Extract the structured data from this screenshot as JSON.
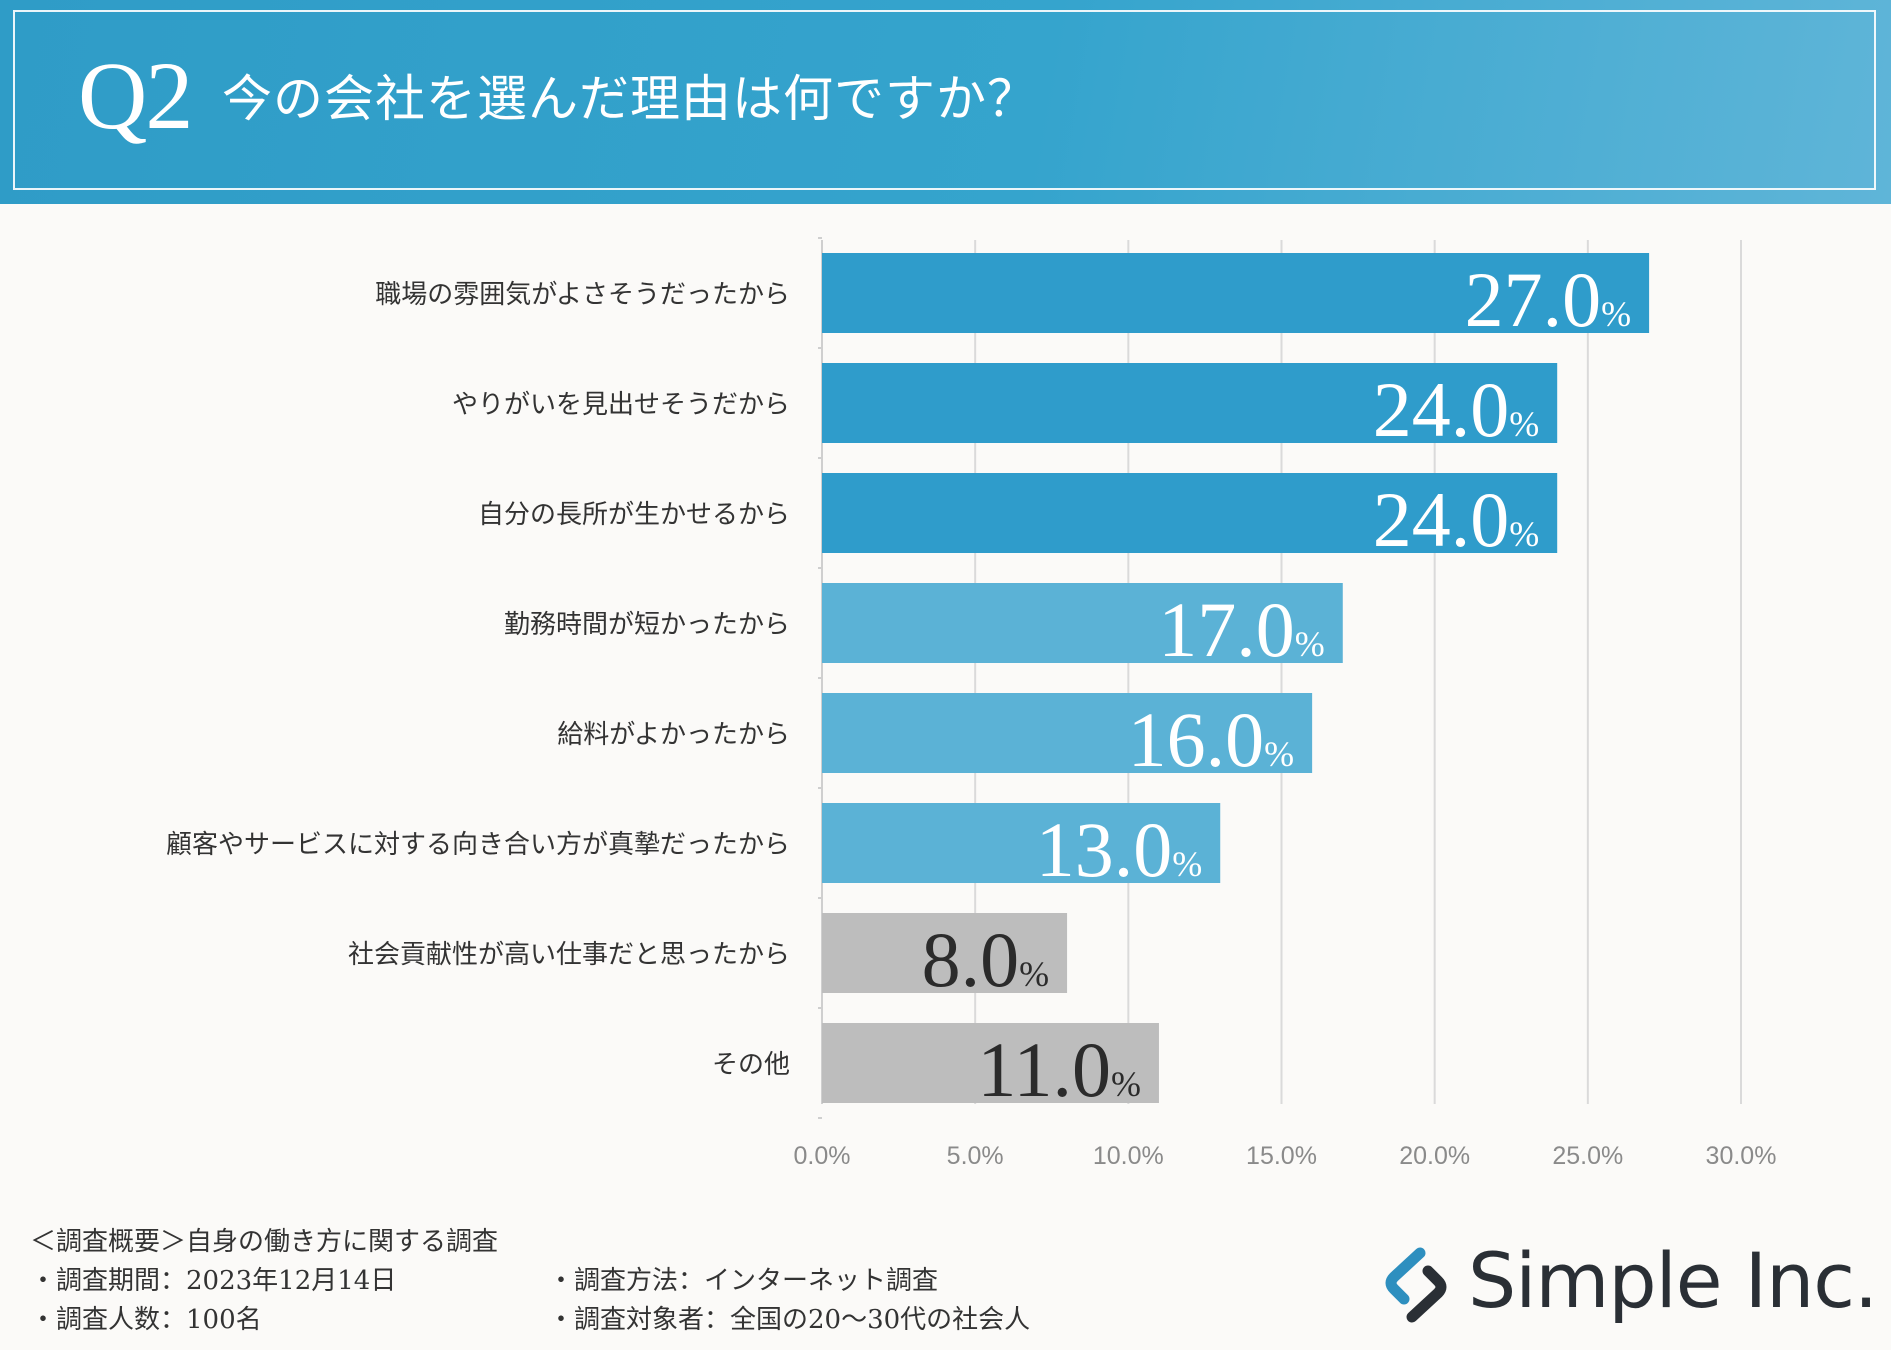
{
  "header": {
    "q_number": "Q2",
    "title": "今の会社を選んだ理由は何ですか？"
  },
  "chart_data": {
    "type": "bar",
    "orientation": "horizontal",
    "categories": [
      "職場の雰囲気がよさそうだったから",
      "やりがいを見出せそうだから",
      "自分の長所が生かせるから",
      "勤務時間が短かったから",
      "給料がよかったから",
      "顧客やサービスに対する向き合い方が真摯だったから",
      "社会貢献性が高い仕事だと思ったから",
      "その他"
    ],
    "values": [
      27.0,
      24.0,
      24.0,
      17.0,
      16.0,
      13.0,
      8.0,
      11.0
    ],
    "data_labels": [
      "27.0",
      "24.0",
      "24.0",
      "17.0",
      "16.0",
      "13.0",
      "8.0",
      "11.0"
    ],
    "label_unit": "%",
    "bar_colors": [
      "#2f9ccb",
      "#2f9ccb",
      "#2f9ccb",
      "#5bb2d6",
      "#5bb2d6",
      "#5bb2d6",
      "#bdbdbd",
      "#bdbdbd"
    ],
    "label_colors": [
      "#ffffff",
      "#ffffff",
      "#ffffff",
      "#ffffff",
      "#ffffff",
      "#ffffff",
      "#2b2b2b",
      "#2b2b2b"
    ],
    "x_ticks": [
      "0.0%",
      "5.0%",
      "10.0%",
      "15.0%",
      "20.0%",
      "25.0%",
      "30.0%"
    ],
    "xlim": [
      0,
      30
    ],
    "grid": true,
    "title": "",
    "xlabel": "",
    "ylabel": ""
  },
  "footer": {
    "overview": "＜調査概要＞自身の働き方に関する調査",
    "period": "・調査期間：2023年12月14日",
    "method": "・調査方法：インターネット調査",
    "count": "・調査人数：100名",
    "target": "・調査対象者：全国の20〜30代の社会人",
    "brand": "Simple Inc."
  },
  "colors": {
    "header_blue": "#35a4cd",
    "bar_primary": "#2f9ccb",
    "bar_secondary": "#5bb2d6",
    "bar_gray": "#bdbdbd"
  }
}
